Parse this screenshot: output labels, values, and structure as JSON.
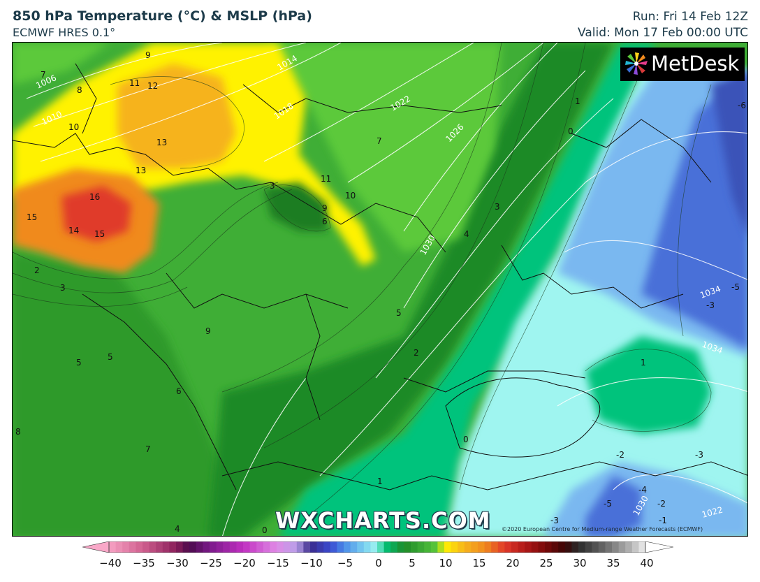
{
  "header": {
    "title": "850 hPa Temperature (°C) & MSLP (hPa)",
    "model": "ECMWF HRES 0.1°",
    "run": "Run: Fri 14 Feb 12Z",
    "valid": "Valid: Mon 17 Feb 00:00 UTC"
  },
  "branding": {
    "logo_text": "MetDesk",
    "watermark": "WXCHARTS.COM",
    "copyright": "©2020 European Centre for Medium-range Weather Forecasts (ECMWF)"
  },
  "map": {
    "temperature_labels": [
      "16",
      "15",
      "15",
      "14",
      "13",
      "13",
      "12",
      "11",
      "11",
      "10",
      "10",
      "9",
      "9",
      "9",
      "8",
      "8",
      "7",
      "7",
      "7",
      "6",
      "6",
      "5",
      "5",
      "5",
      "4",
      "4",
      "3",
      "3",
      "3",
      "2",
      "2",
      "1",
      "1",
      "1",
      "0",
      "0",
      "0",
      "-1",
      "-2",
      "-2",
      "-3",
      "-3",
      "-3",
      "-4",
      "-5",
      "-5",
      "-6"
    ],
    "pressure_labels": [
      "1006",
      "1010",
      "1014",
      "1018",
      "1022",
      "1026",
      "1030",
      "1034",
      "1034",
      "1030",
      "1022"
    ]
  },
  "colorbar": {
    "min": -40,
    "max": 40,
    "ticks": [
      "−40",
      "−35",
      "−30",
      "−25",
      "−20",
      "−15",
      "−10",
      "−5",
      "0",
      "5",
      "10",
      "15",
      "20",
      "25",
      "30",
      "35",
      "40"
    ],
    "colors": {
      "warm_extreme": "#e03a2a",
      "warm": "#f08a1e",
      "mild": "#fff200",
      "green_light": "#5cc93a",
      "green": "#2e9e2e",
      "teal": "#00c37c",
      "cyan": "#9ff5f0",
      "blue_light": "#7ab8f0",
      "blue": "#4a6fd8"
    }
  }
}
